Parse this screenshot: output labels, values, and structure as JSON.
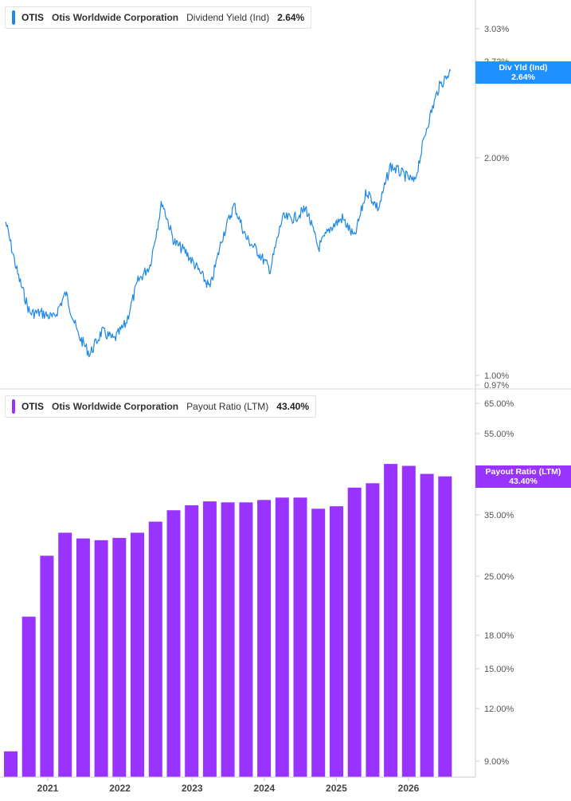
{
  "colors": {
    "yield_line": "#1e88e5",
    "payout_bar": "#9933ff",
    "yield_badge": "#1e90ff",
    "payout_badge": "#9933ff",
    "axis": "#cccccc",
    "tick_text": "#555555"
  },
  "top_legend": {
    "ticker": "OTIS",
    "company": "Otis Worldwide Corporation",
    "metric": "Dividend Yield (Ind)",
    "value": "2.64%"
  },
  "bottom_legend": {
    "ticker": "OTIS",
    "company": "Otis Worldwide Corporation",
    "metric": "Payout Ratio (LTM)",
    "value": "43.40%"
  },
  "top_badge": {
    "label": "Div Yld (Ind)",
    "value": "2.64%"
  },
  "bottom_badge": {
    "label": "Payout Ratio (LTM)",
    "value": "43.40%"
  },
  "chart_data": [
    {
      "type": "line",
      "scale": "log",
      "series": [
        {
          "name": "Dividend Yield (Ind)",
          "x": [
            "2020-06",
            "2020-08",
            "2020-10",
            "2020-12",
            "2021-02",
            "2021-04",
            "2021-06",
            "2021-08",
            "2021-10",
            "2021-12",
            "2022-02",
            "2022-04",
            "2022-06",
            "2022-08",
            "2022-10",
            "2022-12",
            "2023-02",
            "2023-04",
            "2023-06",
            "2023-08",
            "2023-10",
            "2023-12",
            "2024-02",
            "2024-04",
            "2024-06",
            "2024-08",
            "2024-10",
            "2024-12",
            "2025-02",
            "2025-04",
            "2025-06",
            "2025-08",
            "2025-10",
            "2025-12",
            "2026-02",
            "2026-04",
            "2026-06",
            "2026-08"
          ],
          "values": [
            1.63,
            1.38,
            1.22,
            1.22,
            1.2,
            1.3,
            1.14,
            1.07,
            1.15,
            1.12,
            1.18,
            1.35,
            1.42,
            1.74,
            1.53,
            1.48,
            1.4,
            1.32,
            1.55,
            1.72,
            1.55,
            1.48,
            1.4,
            1.65,
            1.65,
            1.7,
            1.5,
            1.6,
            1.65,
            1.55,
            1.8,
            1.7,
            1.95,
            1.9,
            1.85,
            2.2,
            2.5,
            2.64
          ]
        }
      ],
      "yticks": [
        "3.03%",
        "2.72%",
        "2.00%",
        "1.00%",
        "0.97%"
      ]
    },
    {
      "type": "bar",
      "scale": "log",
      "categories": [
        "2020Q3",
        "2020Q4",
        "2021Q1",
        "2021Q2",
        "2021Q3",
        "2021Q4",
        "2022Q1",
        "2022Q2",
        "2022Q3",
        "2022Q4",
        "2023Q1",
        "2023Q2",
        "2023Q3",
        "2023Q4",
        "2024Q1",
        "2024Q2",
        "2024Q3",
        "2024Q4",
        "2025Q1",
        "2025Q2",
        "2025Q3",
        "2025Q4",
        "2026Q1",
        "2026Q2",
        "2026Q3"
      ],
      "series": [
        {
          "name": "Payout Ratio (LTM)",
          "values": [
            9.5,
            20.0,
            28.0,
            31.8,
            30.8,
            30.5,
            30.9,
            31.8,
            33.8,
            36.0,
            37.0,
            37.8,
            37.6,
            37.6,
            38.1,
            38.6,
            38.6,
            36.3,
            36.8,
            40.8,
            41.8,
            46.5,
            46.0,
            44.0,
            43.4
          ]
        }
      ],
      "yticks": [
        "65.00%",
        "55.00%",
        "35.00%",
        "25.00%",
        "18.00%",
        "15.00%",
        "12.00%",
        "9.00%"
      ]
    }
  ],
  "x_axis_labels": [
    "2021",
    "2022",
    "2023",
    "2024",
    "2025",
    "2026"
  ]
}
